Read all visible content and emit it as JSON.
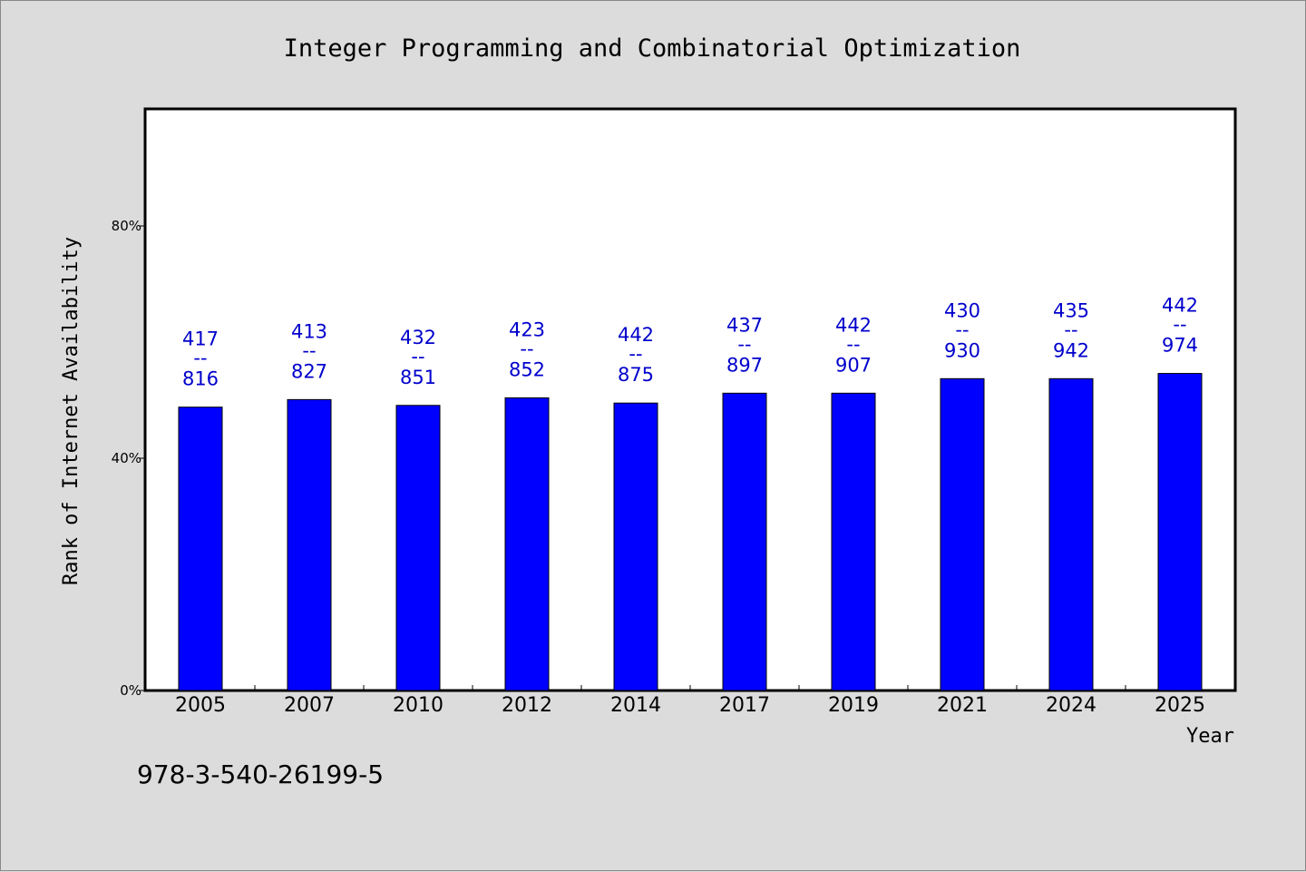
{
  "chart_data": {
    "type": "bar",
    "title": "Integer Programming and Combinatorial Optimization",
    "xlabel": "Year",
    "ylabel": "Rank of Internet Availability",
    "ylim": [
      0,
      100
    ],
    "yticks": [
      0,
      40,
      80
    ],
    "ytick_labels": [
      "0%",
      "40%",
      "80%"
    ],
    "grid": false,
    "categories": [
      "2005",
      "2007",
      "2010",
      "2012",
      "2014",
      "2017",
      "2019",
      "2021",
      "2024",
      "2025"
    ],
    "values": [
      48.8,
      50.1,
      49.1,
      50.4,
      49.5,
      51.2,
      51.2,
      53.7,
      53.7,
      54.6
    ],
    "labels_top": [
      "417",
      "413",
      "432",
      "423",
      "442",
      "437",
      "442",
      "430",
      "435",
      "442"
    ],
    "labels_sep": "--",
    "labels_bottom": [
      "816",
      "827",
      "851",
      "852",
      "875",
      "897",
      "907",
      "930",
      "942",
      "974"
    ],
    "bar_color": "#0000ff",
    "label_color": "#0000cc"
  },
  "footnote": "978-3-540-26199-5"
}
